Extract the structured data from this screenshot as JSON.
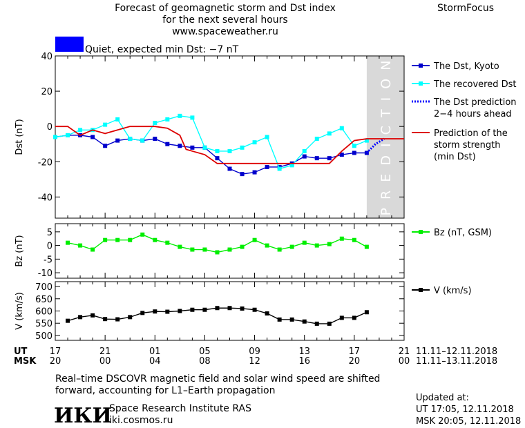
{
  "header": {
    "title_lines": [
      "Forecast of geomagnetic storm and Dst index",
      "for the next several hours",
      "www.spaceweather.ru"
    ],
    "brand": "StormFocus",
    "status_text": "Quiet, expected min Dst: −7 nT",
    "status_color": "#0000ff"
  },
  "colors": {
    "dst_kyoto": "#0000cc",
    "dst_recovered": "#00ffff",
    "dst_prediction": "#0000ff",
    "storm_strength": "#dd0000",
    "bz": "#00ee00",
    "v": "#000000",
    "prediction_band": "#d9d9d9"
  },
  "chart_data": [
    {
      "type": "line",
      "ylabel": "Dst (nT)",
      "ylim": [
        -52,
        40
      ],
      "yticks": [
        40,
        20,
        0,
        -20,
        -40
      ],
      "xlim": [
        17,
        45
      ],
      "prediction_region": {
        "x": [
          42,
          45
        ],
        "label": "PREDICTION"
      },
      "series": [
        {
          "name": "The Dst, Kyoto",
          "x": [
            17,
            18,
            19,
            20,
            21,
            22,
            23,
            24,
            25,
            26,
            27,
            28,
            29,
            30,
            31,
            32,
            33,
            34,
            35,
            36,
            37,
            38,
            39,
            40,
            41,
            42
          ],
          "y": [
            -6,
            -5,
            -5,
            -6,
            -11,
            -8,
            -7,
            -8,
            -7,
            -10,
            -11,
            -12,
            -12,
            -18,
            -24,
            -27,
            -26,
            -23,
            -23,
            -21,
            -17,
            -18,
            -18,
            -16,
            -15,
            -15
          ]
        },
        {
          "name": "The recovered Dst",
          "x": [
            17,
            18,
            19,
            20,
            21,
            22,
            23,
            24,
            25,
            26,
            27,
            28,
            29,
            30,
            31,
            32,
            33,
            34,
            35,
            36,
            37,
            38,
            39,
            40,
            41,
            42
          ],
          "y": [
            -6,
            -5,
            -2,
            -2,
            1,
            4,
            -7,
            -8,
            2,
            4,
            6,
            5,
            -12,
            -14,
            -14,
            -12,
            -9,
            -6,
            -24,
            -22,
            -14,
            -7,
            -4,
            -1,
            -11,
            -8
          ]
        },
        {
          "name": "The Dst prediction\n2−4 hours ahead",
          "x": [
            42,
            42.7,
            43.4
          ],
          "y": [
            -15,
            -10,
            -7
          ]
        },
        {
          "name": "Prediction of the\nstorm strength\n(min Dst)",
          "x": [
            17,
            18,
            19,
            20,
            21,
            22,
            23,
            24,
            25,
            26,
            27,
            27.5,
            28,
            29,
            30,
            31,
            32,
            33,
            34,
            35,
            36,
            37,
            38,
            39,
            40,
            41,
            42,
            43,
            44,
            45
          ],
          "y": [
            0,
            0,
            -5,
            -2,
            -4,
            -2,
            0,
            0,
            0,
            -1,
            -5,
            -13,
            -14,
            -16,
            -21,
            -21,
            -21,
            -21,
            -21,
            -21,
            -21,
            -21,
            -21,
            -21,
            -14,
            -8,
            -7,
            -7,
            -7,
            -7
          ]
        }
      ]
    },
    {
      "type": "line",
      "ylabel": "Bz (nT)",
      "ylim": [
        -12,
        8
      ],
      "yticks": [
        5,
        0,
        -5,
        -10
      ],
      "xlim": [
        17,
        45
      ],
      "series": [
        {
          "name": "Bz (nT, GSM)",
          "x": [
            18,
            19,
            20,
            21,
            22,
            23,
            24,
            25,
            26,
            27,
            28,
            29,
            30,
            31,
            32,
            33,
            34,
            35,
            36,
            37,
            38,
            39,
            40,
            41,
            42
          ],
          "y": [
            1,
            0,
            -1.5,
            2,
            2,
            2,
            4,
            2,
            1,
            -0.5,
            -1.5,
            -1.5,
            -2.5,
            -1.5,
            -0.5,
            2,
            0,
            -1.5,
            -0.5,
            1,
            0,
            0.5,
            2.5,
            2,
            -0.5
          ]
        }
      ]
    },
    {
      "type": "line",
      "ylabel": "V (km/s)",
      "ylim": [
        480,
        720
      ],
      "yticks": [
        700,
        650,
        600,
        550,
        500
      ],
      "xlim": [
        17,
        45
      ],
      "series": [
        {
          "name": "V (km/s)",
          "x": [
            18,
            19,
            20,
            21,
            22,
            23,
            24,
            25,
            26,
            27,
            28,
            29,
            30,
            31,
            32,
            33,
            34,
            35,
            36,
            37,
            38,
            39,
            40,
            41,
            42
          ],
          "y": [
            560,
            575,
            582,
            567,
            566,
            575,
            592,
            598,
            597,
            600,
            605,
            605,
            612,
            612,
            610,
            605,
            590,
            565,
            565,
            557,
            548,
            548,
            572,
            572,
            595
          ]
        }
      ]
    }
  ],
  "x_axis": {
    "ut_label": "UT",
    "msk_label": "MSK",
    "ut_ticks": [
      "17",
      "21",
      "01",
      "05",
      "09",
      "13",
      "17",
      "21"
    ],
    "msk_ticks": [
      "20",
      "00",
      "04",
      "08",
      "12",
      "16",
      "20",
      "00"
    ],
    "ut_range": "11.11–12.11.2018",
    "msk_range": "11.11–13.11.2018"
  },
  "footer": {
    "note_lines": [
      "Real–time DSCOVR magnetic field and solar wind speed are shifted",
      "forward, accounting for L1–Earth propagation"
    ],
    "logo_text": "ИКИ",
    "institute": "Space Research Institute RAS",
    "website": "iki.cosmos.ru",
    "updated_label": "Updated at:",
    "updated_ut": "UT   17:05, 12.11.2018",
    "updated_msk": "MSK 20:05, 12.11.2018"
  }
}
